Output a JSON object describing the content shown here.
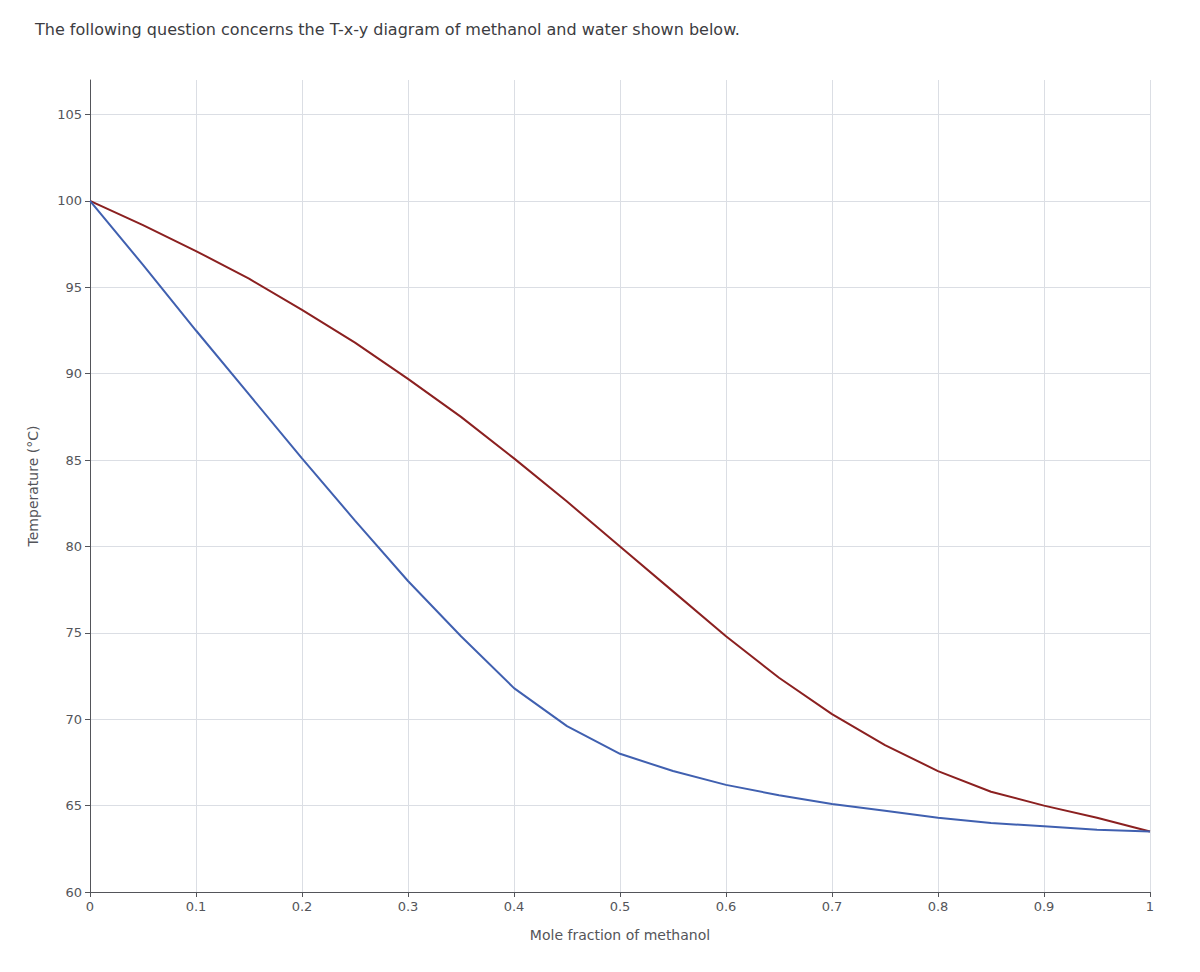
{
  "chart_data": {
    "type": "line",
    "title": "The following question concerns the T-x-y diagram of methanol and water shown below.",
    "xlabel": "Mole fraction of methanol",
    "ylabel": "Temperature (°C)",
    "x": [
      0.0,
      0.05,
      0.1,
      0.15,
      0.2,
      0.25,
      0.3,
      0.35,
      0.4,
      0.45,
      0.5,
      0.55,
      0.6,
      0.65,
      0.7,
      0.75,
      0.8,
      0.85,
      0.9,
      0.95,
      1.0
    ],
    "series": [
      {
        "color": "#8B2020",
        "values": [
          100.0,
          98.6,
          97.1,
          95.5,
          93.7,
          91.8,
          89.7,
          87.5,
          85.1,
          82.6,
          80.0,
          77.4,
          74.8,
          72.4,
          70.3,
          68.5,
          67.0,
          65.8,
          65.0,
          64.3,
          63.5
        ]
      },
      {
        "color": "#4060B0",
        "values": [
          100.0,
          96.3,
          92.5,
          88.8,
          85.1,
          81.5,
          78.0,
          74.8,
          71.8,
          69.6,
          68.0,
          67.0,
          66.2,
          65.6,
          65.1,
          64.7,
          64.3,
          64.0,
          63.8,
          63.6,
          63.5
        ]
      }
    ],
    "xlim": [
      0,
      1
    ],
    "ylim": [
      60,
      107
    ],
    "xticks": [
      0,
      0.1,
      0.2,
      0.3,
      0.4,
      0.5,
      0.6,
      0.7,
      0.8,
      0.9,
      1
    ],
    "yticks": [
      60,
      65,
      70,
      75,
      80,
      85,
      90,
      95,
      100,
      105
    ],
    "grid": true
  }
}
